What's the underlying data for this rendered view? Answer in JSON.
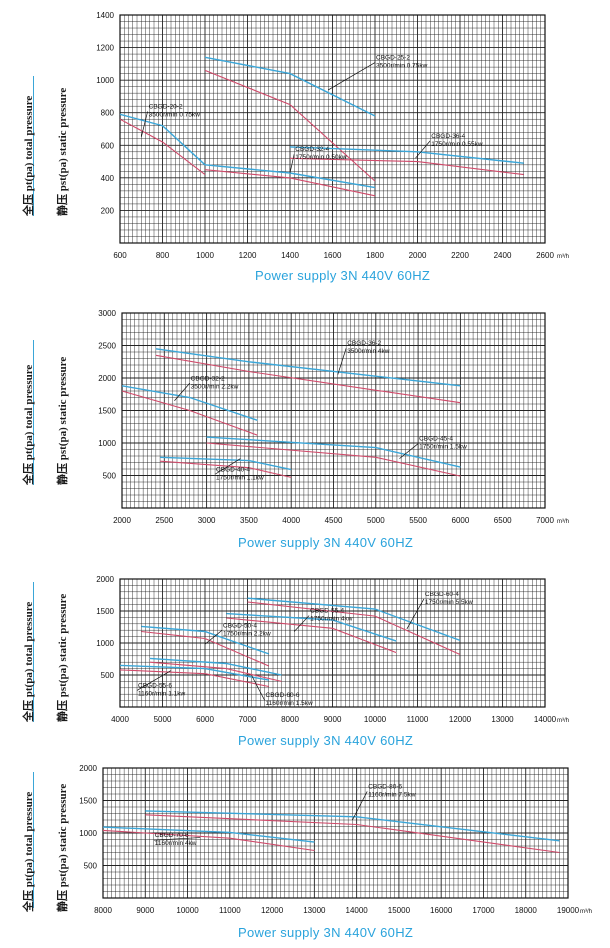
{
  "charts": [
    {
      "ylabel_total": "全压 pt(pa)  total pressure",
      "ylabel_static": "静压 pst(pa) static pressure",
      "supply": "Power supply   3N   440V   60HZ",
      "unit": "m³/h"
    },
    {
      "ylabel_total": "全压 pt(pa)  total pressure",
      "ylabel_static": "静压 pst(pa) static pressure",
      "supply": "Power supply   3N   440V   60HZ",
      "unit": "m³/h"
    },
    {
      "ylabel_total": "全压 pt(pa)  total pressure",
      "ylabel_static": "静压 pst(pa) static pressure",
      "supply": "Power supply   3N   440V   60HZ",
      "unit": "m³/h"
    },
    {
      "ylabel_total": "全压 pt(pa)  total pressure",
      "ylabel_static": "静压 pst(pa) static pressure",
      "supply": "Power supply   3N   440V   60HZ",
      "unit": "m³/h"
    }
  ],
  "colors": {
    "total": "#3aa6d8",
    "static": "#d04a6a",
    "grid": "#222222",
    "supply": "#2aa3dc"
  },
  "chart_data": [
    {
      "type": "line",
      "xlim": [
        600,
        2600
      ],
      "ylim": [
        0,
        1400
      ],
      "grid": true,
      "xticks": [
        600,
        800,
        1000,
        1200,
        1400,
        1600,
        1800,
        2000,
        2200,
        2400,
        2600
      ],
      "yticks": [
        200,
        400,
        600,
        800,
        1000,
        1200,
        1400
      ],
      "series": [
        {
          "name": "CBGD-25-2",
          "label2": "3500r/min 0.75kw",
          "label_at": [
            1800,
            1120
          ],
          "leader_to": [
            1580,
            940
          ],
          "total": [
            [
              1000,
              1140
            ],
            [
              1400,
              1040
            ],
            [
              1800,
              780
            ]
          ],
          "static": [
            [
              1000,
              1060
            ],
            [
              1400,
              850
            ],
            [
              1800,
              380
            ]
          ]
        },
        {
          "name": "CBGD-20-2",
          "label2": "3500r/min 0.75kw",
          "label_at": [
            730,
            820
          ],
          "leader_to": [
            700,
            650
          ],
          "total": [
            [
              600,
              790
            ],
            [
              800,
              720
            ],
            [
              1000,
              480
            ]
          ],
          "static": [
            [
              600,
              760
            ],
            [
              800,
              620
            ],
            [
              1000,
              420
            ]
          ]
        },
        {
          "name": "CBGD-36-4",
          "label2": "1750r/min 0.55kw",
          "label_at": [
            2060,
            640
          ],
          "leader_to": [
            1990,
            520
          ],
          "total": [
            [
              1400,
              590
            ],
            [
              2000,
              560
            ],
            [
              2500,
              490
            ]
          ],
          "static": [
            [
              1400,
              520
            ],
            [
              2000,
              500
            ],
            [
              2500,
              420
            ]
          ]
        },
        {
          "name": "CBGD-32-4",
          "label2": "1750r/min 0.50kw",
          "label_at": [
            1420,
            560
          ],
          "leader_to": [
            1400,
            430
          ],
          "total": [
            [
              1000,
              480
            ],
            [
              1400,
              430
            ],
            [
              1800,
              340
            ]
          ],
          "static": [
            [
              1000,
              450
            ],
            [
              1400,
              400
            ],
            [
              1800,
              290
            ]
          ]
        }
      ]
    },
    {
      "type": "line",
      "xlim": [
        2000,
        7000
      ],
      "ylim": [
        0,
        3000
      ],
      "grid": true,
      "xticks": [
        2000,
        2500,
        3000,
        3500,
        4000,
        4500,
        5000,
        5500,
        6000,
        6500,
        7000
      ],
      "yticks": [
        500,
        1000,
        1500,
        2000,
        2500,
        3000
      ],
      "series": [
        {
          "name": "CBGD-36-2",
          "label2": "3500r/min 4kw",
          "label_at": [
            4650,
            2490
          ],
          "leader_to": [
            4550,
            2050
          ],
          "total": [
            [
              2400,
              2450
            ],
            [
              3500,
              2250
            ],
            [
              6000,
              1880
            ]
          ],
          "static": [
            [
              2400,
              2350
            ],
            [
              3500,
              2100
            ],
            [
              6000,
              1620
            ]
          ]
        },
        {
          "name": "CBGD-32-2",
          "label2": "3500r/min 2.2kw",
          "label_at": [
            2800,
            1950
          ],
          "leader_to": [
            2620,
            1650
          ],
          "total": [
            [
              2000,
              1880
            ],
            [
              2800,
              1700
            ],
            [
              3600,
              1350
            ]
          ],
          "static": [
            [
              2000,
              1800
            ],
            [
              2800,
              1500
            ],
            [
              3600,
              1120
            ]
          ]
        },
        {
          "name": "CBGD-45-4",
          "label2": "1750r/min 1.5kw",
          "label_at": [
            5500,
            1020
          ],
          "leader_to": [
            5280,
            760
          ],
          "total": [
            [
              3000,
              1090
            ],
            [
              5000,
              930
            ],
            [
              6000,
              630
            ]
          ],
          "static": [
            [
              3000,
              1000
            ],
            [
              5000,
              780
            ],
            [
              6000,
              490
            ]
          ]
        },
        {
          "name": "CBGD-40-4",
          "label2": "1750r/min 1.1kw",
          "label_at": [
            3100,
            550
          ],
          "leader_to": [
            3400,
            760
          ],
          "total": [
            [
              2450,
              780
            ],
            [
              3500,
              730
            ],
            [
              4000,
              590
            ]
          ],
          "static": [
            [
              2450,
              720
            ],
            [
              3500,
              620
            ],
            [
              4000,
              470
            ]
          ]
        }
      ]
    },
    {
      "type": "line",
      "xlim": [
        4000,
        14000
      ],
      "ylim": [
        0,
        2000
      ],
      "grid": true,
      "xticks": [
        4000,
        5000,
        6000,
        7000,
        8000,
        9000,
        10000,
        11000,
        12000,
        13000,
        14000
      ],
      "yticks": [
        500,
        1000,
        1500,
        2000
      ],
      "series": [
        {
          "name": "CBGD-60-4",
          "label2": "1750r/min 5.5kw",
          "label_at": [
            11150,
            1720
          ],
          "leader_to": [
            10750,
            1220
          ],
          "total": [
            [
              7000,
              1700
            ],
            [
              10000,
              1530
            ],
            [
              12000,
              1040
            ]
          ],
          "static": [
            [
              7000,
              1640
            ],
            [
              10000,
              1420
            ],
            [
              12000,
              820
            ]
          ]
        },
        {
          "name": "CBGD-55-4",
          "label2": "1750r/min 4kw",
          "label_at": [
            8450,
            1460
          ],
          "leader_to": [
            8100,
            1180
          ],
          "total": [
            [
              6500,
              1460
            ],
            [
              9000,
              1360
            ],
            [
              10500,
              1030
            ]
          ],
          "static": [
            [
              6500,
              1390
            ],
            [
              9000,
              1230
            ],
            [
              10500,
              850
            ]
          ]
        },
        {
          "name": "CBGD-50-4",
          "label2": "1750r/min 2.2kw",
          "label_at": [
            6400,
            1230
          ],
          "leader_to": [
            6000,
            980
          ],
          "total": [
            [
              4500,
              1260
            ],
            [
              6000,
              1180
            ],
            [
              7500,
              830
            ]
          ],
          "static": [
            [
              4500,
              1180
            ],
            [
              6000,
              1070
            ],
            [
              7500,
              640
            ]
          ]
        },
        {
          "name": "CBGD-55-6",
          "label2": "1160r/min 1.1kw",
          "label_at": [
            4400,
            290
          ],
          "leader_to": [
            5200,
            570
          ],
          "total": [
            [
              4000,
              650
            ],
            [
              6000,
              600
            ],
            [
              7500,
              420
            ]
          ],
          "static": [
            [
              4000,
              580
            ],
            [
              6000,
              520
            ],
            [
              7500,
              320
            ]
          ]
        },
        {
          "name": "CBGD-60-6",
          "label2": "1160r/min 1.5kw",
          "label_at": [
            7400,
            140
          ],
          "leader_to": [
            7100,
            490
          ],
          "total": [
            [
              4700,
              760
            ],
            [
              6500,
              680
            ],
            [
              7800,
              500
            ]
          ],
          "static": [
            [
              4700,
              700
            ],
            [
              6500,
              600
            ],
            [
              7800,
              400
            ]
          ]
        }
      ]
    },
    {
      "type": "line",
      "xlim": [
        8000,
        19000
      ],
      "ylim": [
        0,
        2000
      ],
      "grid": true,
      "xticks": [
        8000,
        9000,
        10000,
        11000,
        12000,
        13000,
        14000,
        15000,
        16000,
        17000,
        18000,
        19000
      ],
      "yticks": [
        500,
        1000,
        1500,
        2000
      ],
      "series": [
        {
          "name": "CBGD-80-6",
          "label2": "1160r/min 7.5kw",
          "label_at": [
            14250,
            1670
          ],
          "leader_to": [
            13900,
            1200
          ],
          "total": [
            [
              9000,
              1340
            ],
            [
              14000,
              1250
            ],
            [
              18800,
              880
            ]
          ],
          "static": [
            [
              9000,
              1280
            ],
            [
              14000,
              1130
            ],
            [
              18800,
              700
            ]
          ]
        },
        {
          "name": "CBGD-70-6",
          "label2": "1160r/min 4kw",
          "label_at": [
            9200,
            920
          ],
          "leader_to": [
            10300,
            930
          ],
          "total": [
            [
              8000,
              1090
            ],
            [
              11000,
              1010
            ],
            [
              13000,
              860
            ]
          ],
          "static": [
            [
              8000,
              1040
            ],
            [
              11000,
              920
            ],
            [
              13000,
              730
            ]
          ]
        }
      ]
    }
  ]
}
